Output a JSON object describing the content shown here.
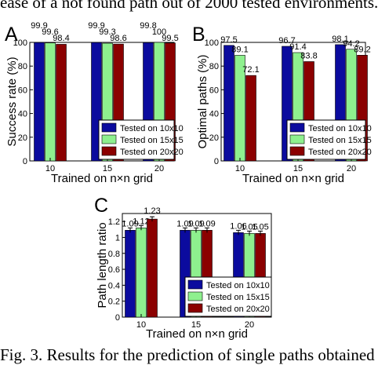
{
  "caption_top": "ease of a not found path out of 2000 tested environments.",
  "caption_bottom": "Fig. 3. Results for the prediction of single paths obtained",
  "series_colors": [
    "#0b0b9e",
    "#8ef08e",
    "#8b0000"
  ],
  "chart_data": [
    {
      "type": "bar",
      "panel": "A",
      "ylabel": "Success rate (%)",
      "xlabel": "Trained on n×n grid",
      "categories": [
        "10",
        "15",
        "20"
      ],
      "ylim": [
        0,
        100
      ],
      "yticks": [
        "0",
        "20",
        "40",
        "60",
        "80",
        "100"
      ],
      "series": [
        {
          "name": "Tested on 10x10",
          "values": [
            99.9,
            99.9,
            99.8
          ],
          "labels": [
            "99.9",
            "99.9",
            "99.8"
          ]
        },
        {
          "name": "Tested on 15x15",
          "values": [
            99.6,
            99.3,
            100
          ],
          "labels": [
            "99.6",
            "99.3",
            "100"
          ]
        },
        {
          "name": "Tested on 20x20",
          "values": [
            98.4,
            98.6,
            99.5
          ],
          "labels": [
            "98.4",
            "98.6",
            "99.5"
          ]
        }
      ],
      "legend": "bottom-right"
    },
    {
      "type": "bar",
      "panel": "B",
      "ylabel": "Optimal paths (%)",
      "xlabel": "Trained on n×n grid",
      "categories": [
        "10",
        "15",
        "20"
      ],
      "ylim": [
        0,
        100
      ],
      "yticks": [
        "0",
        "20",
        "40",
        "60",
        "80",
        "100"
      ],
      "series": [
        {
          "name": "Tested on 10x10",
          "values": [
            97.5,
            96.7,
            98.1
          ],
          "labels": [
            "97.5",
            "96.7",
            "98.1"
          ]
        },
        {
          "name": "Tested on 15x15",
          "values": [
            89.1,
            91.4,
            94.2
          ],
          "labels": [
            "89.1",
            "91.4",
            "94.2"
          ]
        },
        {
          "name": "Tested on 20x20",
          "values": [
            72.1,
            83.8,
            89.2
          ],
          "labels": [
            "72.1",
            "83.8",
            "89.2"
          ]
        }
      ],
      "legend": "bottom-right"
    },
    {
      "type": "bar",
      "panel": "C",
      "ylabel": "Path length ratio",
      "xlabel": "Trained on n×n grid",
      "categories": [
        "10",
        "15",
        "20"
      ],
      "ylim": [
        0,
        1.3
      ],
      "yticks": [
        "0",
        "0.2",
        "0.4",
        "0.6",
        "0.8",
        "1",
        "1.2"
      ],
      "error_bars": true,
      "series": [
        {
          "name": "Tested on 10x10",
          "values": [
            1.09,
            1.09,
            1.06
          ],
          "labels": [
            "1.09",
            "1.09",
            "1.06"
          ]
        },
        {
          "name": "Tested on 15x15",
          "values": [
            1.12,
            1.09,
            1.05
          ],
          "labels": [
            "1.12",
            "1.09",
            "1.05"
          ]
        },
        {
          "name": "Tested on 20x20",
          "values": [
            1.23,
            1.09,
            1.05
          ],
          "labels": [
            "1.23",
            "1.09",
            "1.05"
          ]
        }
      ],
      "legend": "bottom-right"
    }
  ]
}
